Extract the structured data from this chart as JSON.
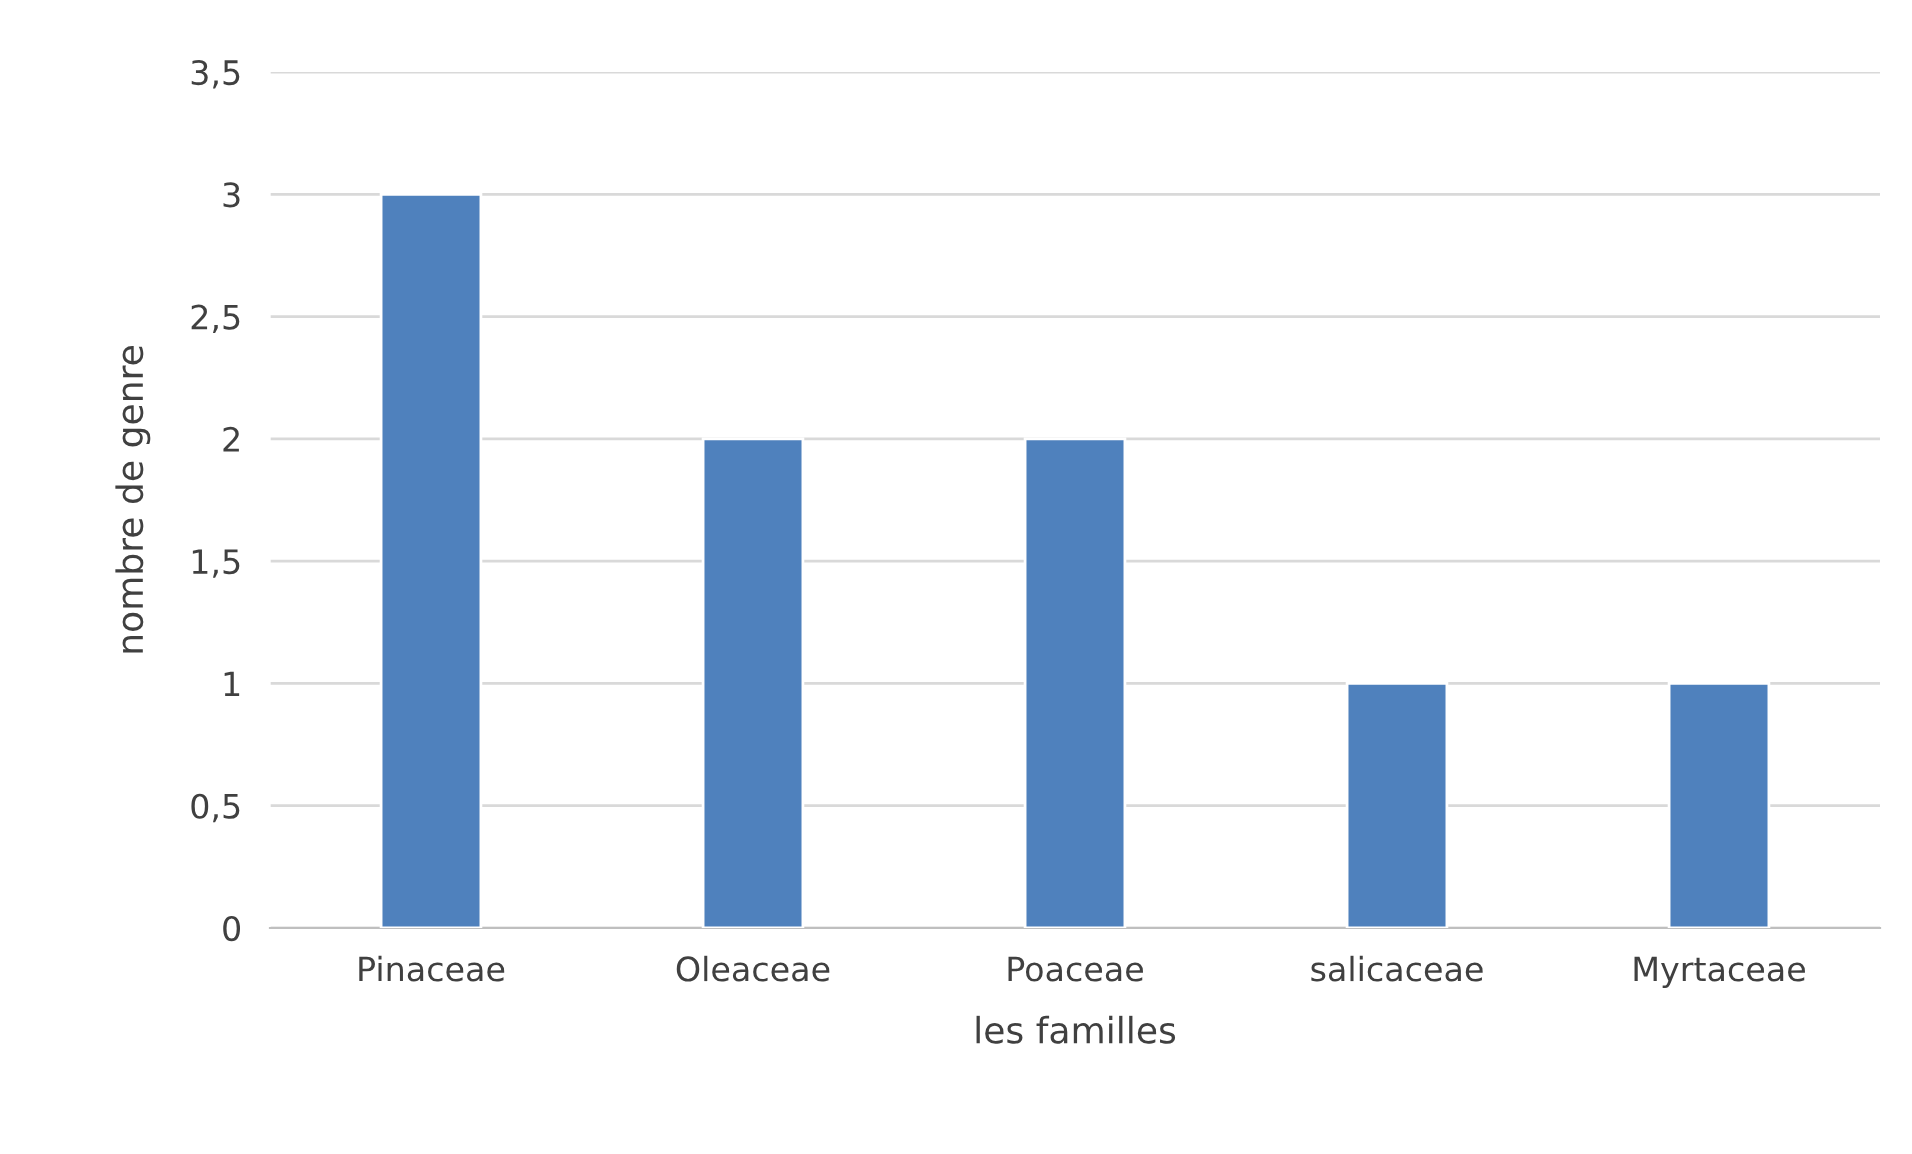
{
  "chart_data": {
    "type": "bar",
    "xlabel": "les familles",
    "ylabel": "nombre de genre",
    "categories": [
      "Pinaceae",
      "Oleaceae",
      "Poaceae",
      "salicaceae",
      "Myrtaceae"
    ],
    "values": [
      3,
      2,
      2,
      1,
      1
    ],
    "color": "#4f81bd",
    "ylim": [
      0,
      3.5
    ],
    "yticks": [
      0,
      {
        "value": 0.5,
        "label": "0,5"
      },
      1,
      {
        "value": 1.5,
        "label": "1,5"
      },
      2,
      {
        "value": 2.5,
        "label": "2,5"
      },
      3,
      {
        "value": 3.5,
        "label": "3,5"
      }
    ],
    "grid": "y"
  }
}
